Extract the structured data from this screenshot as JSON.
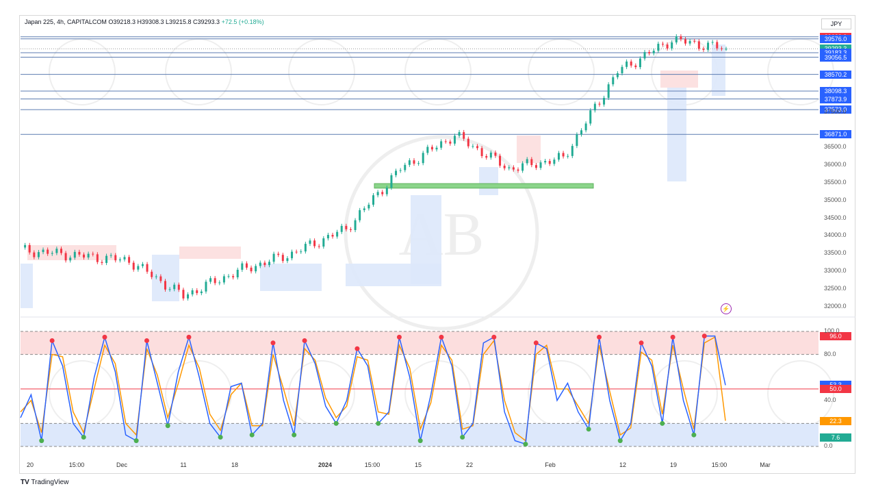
{
  "header": {
    "title": "Japan 225, 4h, CAPITALCOM",
    "ohlc": "O39218.3  H39308.3  L39215.8  C39293.3",
    "change": "+72.5 (+0.18%)",
    "currency": "JPY"
  },
  "footer": {
    "brand": "TradingView",
    "logo": "TV"
  },
  "watermark": "AB",
  "colors": {
    "up": "#22ab94",
    "down": "#f23645",
    "level_line": "#5b7bb0",
    "stoch_k": "#2962ff",
    "stoch_d": "#ff9800",
    "overbought_fill": "#fcdede",
    "oversold_fill": "#dde8fb",
    "support_zone": "#8bd48a"
  },
  "tags": [
    {
      "text": "39633.3",
      "color": "#f23645"
    },
    {
      "text": "39576.0",
      "color": "#2962ff"
    },
    {
      "text": "39293.3",
      "color": "#22ab94"
    },
    {
      "text": "01:31:23",
      "color": "#22ab94"
    },
    {
      "text": "39183.3",
      "color": "#2962ff"
    },
    {
      "text": "39056.5",
      "color": "#2962ff"
    },
    {
      "text": "38570.2",
      "color": "#2962ff"
    },
    {
      "text": "38098.3",
      "color": "#2962ff"
    },
    {
      "text": "37873.9",
      "color": "#2962ff"
    },
    {
      "text": "37573.0",
      "color": "#2962ff"
    },
    {
      "text": "36871.0",
      "color": "#2962ff"
    },
    {
      "text": "96.0",
      "color": "#f23645"
    },
    {
      "text": "53.3",
      "color": "#2962ff"
    },
    {
      "text": "50.0",
      "color": "#f23645"
    },
    {
      "text": "22.3",
      "color": "#ff9800"
    },
    {
      "text": "7.6",
      "color": "#22ab94"
    }
  ],
  "price_axis_labels": [
    "37500.0",
    "36500.0",
    "36000.0",
    "35500.0",
    "35000.0",
    "34500.0",
    "34000.0",
    "33500.0",
    "33000.0",
    "32500.0",
    "32000.0"
  ],
  "stoch_axis_labels": [
    "100.0",
    "80.0",
    "40.0",
    "0.0"
  ],
  "x_labels": [
    "20",
    "15:00",
    "Dec",
    "11",
    "18",
    "2024",
    "15:00",
    "15",
    "22",
    "Feb",
    "12",
    "19",
    "15:00",
    "Mar"
  ],
  "chart_data": {
    "type": "line",
    "title": "Japan 225, 4h, CAPITALCOM",
    "xlabel": "",
    "ylabel": "",
    "ylim": [
      31800,
      39900
    ],
    "x": [
      "20",
      "15:00",
      "Dec",
      "11",
      "18",
      "2024",
      "15:00",
      "15",
      "22",
      "Feb",
      "12",
      "19",
      "15:00",
      "Mar"
    ],
    "series": [
      {
        "name": "Japan 225",
        "values": [
          33600,
          33450,
          33300,
          32300,
          33000,
          33500,
          34200,
          35900,
          36850,
          35900,
          36200,
          38650,
          39550,
          39293
        ]
      }
    ],
    "horizontal_levels": [
      39633.3,
      39576.0,
      39183.3,
      39056.5,
      38570.2,
      38098.3,
      37873.9,
      37573.0,
      36871.0
    ],
    "support_zone": [
      35350,
      35480
    ],
    "stochastic": {
      "ylim": [
        0,
        100
      ],
      "levels": [
        100,
        80,
        50,
        20,
        0
      ],
      "k_last": 53.3,
      "d_last": 22.3,
      "k_values": [
        25,
        45,
        5,
        92,
        70,
        20,
        8,
        60,
        95,
        65,
        10,
        5,
        92,
        55,
        18,
        65,
        95,
        60,
        20,
        8,
        52,
        55,
        10,
        20,
        90,
        40,
        10,
        92,
        72,
        35,
        20,
        40,
        85,
        70,
        20,
        30,
        95,
        60,
        5,
        45,
        95,
        70,
        8,
        20,
        90,
        95,
        30,
        5,
        2,
        90,
        85,
        40,
        55,
        30,
        15,
        95,
        40,
        5,
        20,
        90,
        70,
        20,
        95,
        40,
        10,
        96,
        96,
        53.3
      ],
      "d_values": [
        30,
        40,
        12,
        80,
        78,
        30,
        12,
        50,
        88,
        72,
        20,
        10,
        85,
        62,
        25,
        55,
        88,
        68,
        28,
        14,
        45,
        55,
        18,
        18,
        80,
        50,
        18,
        85,
        75,
        42,
        25,
        35,
        78,
        75,
        30,
        28,
        88,
        68,
        15,
        38,
        88,
        75,
        15,
        18,
        80,
        92,
        40,
        12,
        5,
        80,
        88,
        50,
        50,
        35,
        20,
        88,
        48,
        10,
        16,
        82,
        75,
        28,
        88,
        50,
        15,
        90,
        95,
        22.3
      ]
    }
  }
}
